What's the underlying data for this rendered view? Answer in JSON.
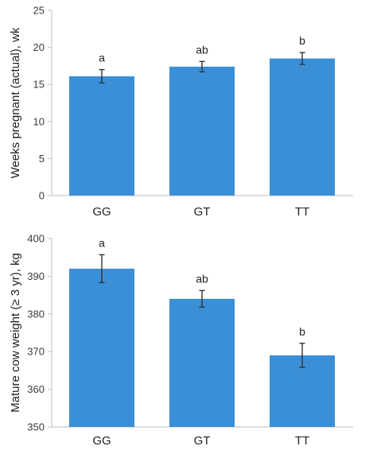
{
  "chart_data": [
    {
      "type": "bar",
      "categories": [
        "GG",
        "GT",
        "TT"
      ],
      "values": [
        16.1,
        17.4,
        18.5
      ],
      "errors": [
        0.9,
        0.7,
        0.8
      ],
      "significance": [
        "a",
        "ab",
        "b"
      ],
      "ylabel": "Weeks pregnant (actual), wk",
      "ylim": [
        0,
        25
      ],
      "yticks": [
        0,
        5,
        10,
        15,
        20,
        25
      ],
      "grid": false,
      "bar_color": "#3a8fd6"
    },
    {
      "type": "bar",
      "categories": [
        "GG",
        "GT",
        "TT"
      ],
      "values": [
        392,
        384,
        369
      ],
      "errors": [
        3.7,
        2.2,
        3.2
      ],
      "significance": [
        "a",
        "ab",
        "b"
      ],
      "ylabel": "Mature cow weight (≥ 3 yr), kg",
      "ylim": [
        350,
        400
      ],
      "yticks": [
        350,
        360,
        370,
        380,
        390,
        400
      ],
      "grid": false,
      "bar_color": "#3a8fd6"
    }
  ]
}
